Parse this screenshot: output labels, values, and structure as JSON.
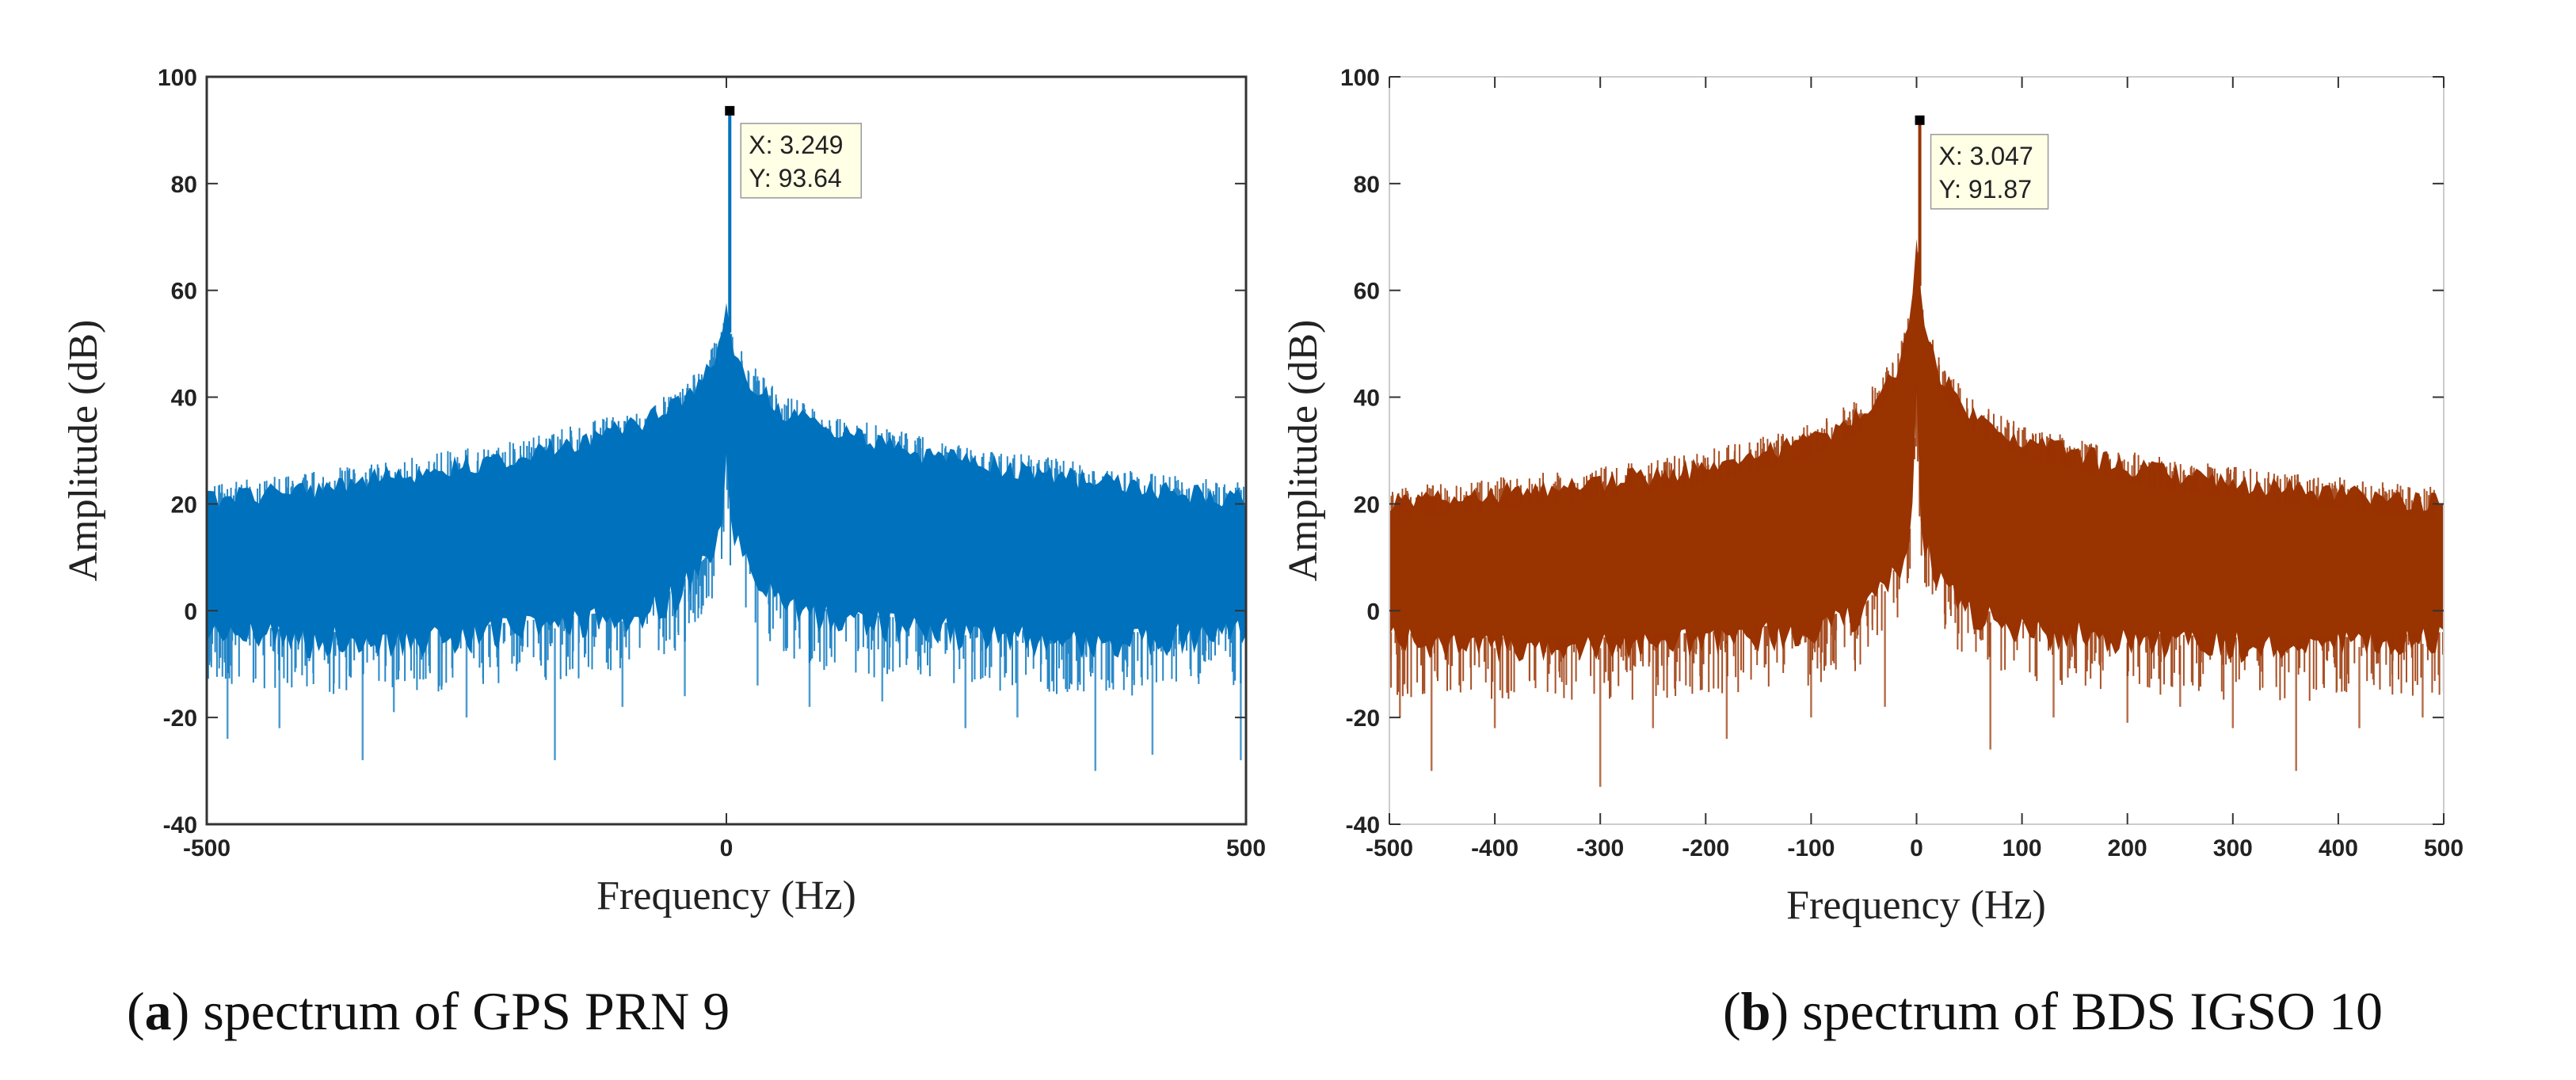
{
  "chart_data": [
    {
      "type": "line",
      "panel": "a",
      "caption_letter": "a",
      "caption_text": "spectrum of GPS PRN 9",
      "xlabel": "Frequency (Hz)",
      "ylabel": "Amplitude (dB)",
      "xlim": [
        -500,
        500
      ],
      "ylim": [
        -40,
        100
      ],
      "xticks": [
        "-500",
        "0",
        "500"
      ],
      "yticks": [
        "-40",
        "-20",
        "0",
        "20",
        "40",
        "60",
        "80",
        "100"
      ],
      "color": "#0072BD",
      "series": [
        {
          "name": "spectrum",
          "peak": {
            "x": 3.249,
            "y": 93.64
          },
          "envelope_x": [
            -500,
            -400,
            -300,
            -200,
            -100,
            -50,
            -20,
            -5,
            0,
            5,
            20,
            50,
            100,
            200,
            300,
            400,
            500
          ],
          "envelope_upper": [
            21,
            23,
            26,
            29,
            34,
            38,
            44,
            50,
            56,
            50,
            44,
            38,
            34,
            29,
            26,
            23,
            21
          ],
          "envelope_lower": [
            -4,
            -6,
            -6,
            -4,
            -2,
            2,
            8,
            14,
            32,
            14,
            8,
            2,
            -2,
            -4,
            -6,
            -6,
            -4
          ],
          "dips_x": [
            -480,
            -430,
            -350,
            -320,
            -250,
            -165,
            -100,
            -40,
            30,
            80,
            150,
            230,
            280,
            355,
            410,
            495
          ],
          "dips_y": [
            -24,
            -22,
            -28,
            -19,
            -20,
            -28,
            -18,
            -16,
            -14,
            -18,
            -17,
            -22,
            -20,
            -30,
            -27,
            -28
          ]
        }
      ],
      "datatip": {
        "x_label": "X: 3.249",
        "y_label": "Y: 93.64"
      }
    },
    {
      "type": "line",
      "panel": "b",
      "caption_letter": "b",
      "caption_text": "spectrum of BDS IGSO 10",
      "xlabel": "Frequency (Hz)",
      "ylabel": "Amplitude (dB)",
      "xlim": [
        -500,
        500
      ],
      "ylim": [
        -40,
        100
      ],
      "xticks": [
        "-500",
        "-400",
        "-300",
        "-200",
        "-100",
        "0",
        "100",
        "200",
        "300",
        "400",
        "500"
      ],
      "yticks": [
        "-40",
        "-20",
        "0",
        "20",
        "40",
        "60",
        "80",
        "100"
      ],
      "color": "#993300",
      "series": [
        {
          "name": "spectrum",
          "peak": {
            "x": 3.047,
            "y": 91.87
          },
          "envelope_x": [
            -500,
            -400,
            -300,
            -200,
            -100,
            -50,
            -20,
            -5,
            0,
            5,
            20,
            50,
            100,
            200,
            300,
            400,
            500
          ],
          "envelope_upper": [
            20,
            22,
            24,
            27,
            32,
            37,
            45,
            55,
            70,
            55,
            45,
            37,
            32,
            27,
            24,
            22,
            20
          ],
          "envelope_lower": [
            -6,
            -7,
            -7,
            -6,
            -4,
            -1,
            6,
            14,
            40,
            14,
            6,
            -1,
            -4,
            -6,
            -7,
            -7,
            -6
          ],
          "dips_x": [
            -490,
            -460,
            -400,
            -300,
            -250,
            -180,
            -100,
            -30,
            70,
            130,
            200,
            250,
            300,
            360,
            420,
            480
          ],
          "dips_y": [
            -20,
            -30,
            -22,
            -33,
            -22,
            -24,
            -20,
            -18,
            -26,
            -20,
            -21,
            -18,
            -22,
            -30,
            -22,
            -20
          ]
        }
      ],
      "datatip": {
        "x_label": "X: 3.047",
        "y_label": "Y: 91.87"
      }
    }
  ]
}
